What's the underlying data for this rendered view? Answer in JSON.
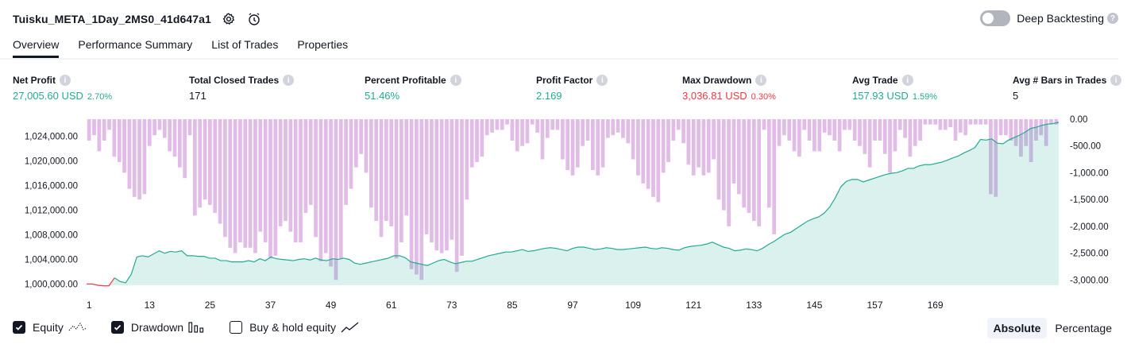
{
  "header": {
    "title": "Tuisku_META_1Day_2MS0_41d647a1",
    "deep_backtesting_label": "Deep Backtesting",
    "help_glyph": "?"
  },
  "tabs": [
    {
      "label": "Overview",
      "active": true
    },
    {
      "label": "Performance Summary",
      "active": false
    },
    {
      "label": "List of Trades",
      "active": false
    },
    {
      "label": "Properties",
      "active": false
    }
  ],
  "info_glyph": "i",
  "stats": [
    {
      "label": "Net Profit",
      "value": "27,005.60 USD",
      "pct": "2.70%",
      "color": "green"
    },
    {
      "label": "Total Closed Trades",
      "value": "171",
      "pct": "",
      "color": "dark"
    },
    {
      "label": "Percent Profitable",
      "value": "51.46%",
      "pct": "",
      "color": "green"
    },
    {
      "label": "Profit Factor",
      "value": "2.169",
      "pct": "",
      "color": "green"
    },
    {
      "label": "Max Drawdown",
      "value": "3,036.81 USD",
      "pct": "0.30%",
      "color": "red"
    },
    {
      "label": "Avg Trade",
      "value": "157.93 USD",
      "pct": "1.59%",
      "color": "green"
    },
    {
      "label": "Avg # Bars in Trades",
      "value": "5",
      "pct": "",
      "color": "dark"
    }
  ],
  "chart_data": {
    "type": "line",
    "equity_series_name": "Equity",
    "drawdown_series_name": "Drawdown",
    "x_ticks": [
      "1",
      "13",
      "25",
      "37",
      "49",
      "61",
      "73",
      "85",
      "97",
      "109",
      "121",
      "133",
      "145",
      "157",
      "169"
    ],
    "left_axis": {
      "labels": [
        "1,024,000.00",
        "1,020,000.00",
        "1,016,000.00",
        "1,012,000.00",
        "1,008,000.00",
        "1,004,000.00",
        "1,000,000.00"
      ],
      "range": [
        999800,
        1026800
      ]
    },
    "right_axis": {
      "labels": [
        "0.00",
        "-500.00",
        "-1,000.00",
        "-1,500.00",
        "-2,000.00",
        "-2,500.00",
        "-3,000.00"
      ],
      "range": [
        -3100,
        0
      ]
    },
    "equity": [
      1000000,
      1000000,
      999800,
      999700,
      999700,
      1001000,
      1000400,
      1000200,
      1001600,
      1004400,
      1004600,
      1004400,
      1004900,
      1005400,
      1005000,
      1005300,
      1005200,
      1005400,
      1004600,
      1004600,
      1004500,
      1004500,
      1004200,
      1004200,
      1003800,
      1003800,
      1003600,
      1003600,
      1003600,
      1003800,
      1003600,
      1004100,
      1003800,
      1004400,
      1004100,
      1004000,
      1003900,
      1003800,
      1004000,
      1004100,
      1003900,
      1004200,
      1003900,
      1003800,
      1004100,
      1004000,
      1004200,
      1004000,
      1003400,
      1003200,
      1003400,
      1003600,
      1003800,
      1004000,
      1004200,
      1004600,
      1004600,
      1004300,
      1003600,
      1003400,
      1003200,
      1003000,
      1003400,
      1003800,
      1004000,
      1003600,
      1003300,
      1003500,
      1003700,
      1003700,
      1004000,
      1004300,
      1004600,
      1004800,
      1005000,
      1005200,
      1005200,
      1005400,
      1005600,
      1005300,
      1005400,
      1005600,
      1005800,
      1005900,
      1005800,
      1005600,
      1005400,
      1005800,
      1006000,
      1006000,
      1005800,
      1005600,
      1005700,
      1005900,
      1005800,
      1005600,
      1005600,
      1005700,
      1005800,
      1005900,
      1006000,
      1005800,
      1005700,
      1005900,
      1005800,
      1005600,
      1005500,
      1005900,
      1006100,
      1006200,
      1006300,
      1006500,
      1006800,
      1006400,
      1006000,
      1005800,
      1005400,
      1005500,
      1005700,
      1005600,
      1005400,
      1005800,
      1006400,
      1006900,
      1007500,
      1008100,
      1008400,
      1009000,
      1009600,
      1010200,
      1010600,
      1010900,
      1011500,
      1012500,
      1014000,
      1015800,
      1016700,
      1017000,
      1017000,
      1016600,
      1016900,
      1017200,
      1017500,
      1017800,
      1018000,
      1018100,
      1018400,
      1018800,
      1018800,
      1019200,
      1019400,
      1019400,
      1019600,
      1019800,
      1020100,
      1020500,
      1020800,
      1021300,
      1021700,
      1022200,
      1023500,
      1023400,
      1023600,
      1022900,
      1022800,
      1023400,
      1023800,
      1024200,
      1024700,
      1025300,
      1025500,
      1025800,
      1026000,
      1026100,
      1026300
    ],
    "drawdown": [
      -400,
      -300,
      -600,
      -400,
      -200,
      -700,
      -800,
      -1000,
      -1300,
      -1450,
      -1500,
      -1400,
      -500,
      -300,
      -200,
      -350,
      -600,
      -700,
      -900,
      -1100,
      -300,
      -1800,
      -1650,
      -1500,
      -1600,
      -1750,
      -1950,
      -2200,
      -2400,
      -2500,
      -2300,
      -2400,
      -2400,
      -2500,
      -2100,
      -2300,
      -2600,
      -2550,
      -2000,
      -1900,
      -2100,
      -2300,
      -2300,
      -1750,
      -1600,
      -2200,
      -2650,
      -2500,
      -2750,
      -3000,
      -2600,
      -1600,
      -1300,
      -900,
      -650,
      -1000,
      -1650,
      -1900,
      -2200,
      -1900,
      -2000,
      -2600,
      -2300,
      -1800,
      -2800,
      -2900,
      -3000,
      -2150,
      -2300,
      -2450,
      -2500,
      -2450,
      -2250,
      -2850,
      -2550,
      -1500,
      -900,
      -800,
      -700,
      -300,
      -250,
      -200,
      -200,
      -100,
      -400,
      -600,
      -500,
      -450,
      -100,
      -250,
      -750,
      -350,
      -200,
      -200,
      -750,
      -950,
      -1050,
      -900,
      -500,
      -400,
      -950,
      -1050,
      -900,
      -350,
      -300,
      -250,
      -350,
      -450,
      -750,
      -1050,
      -1200,
      -1300,
      -1450,
      -1550,
      -1000,
      -800,
      -400,
      -200,
      -450,
      -850,
      -1050,
      -900,
      -1050,
      -1000,
      -750,
      -1500,
      -1700,
      -2000,
      -1200,
      -1400,
      -1650,
      -1750,
      -1900,
      -2000,
      -200,
      -1650,
      -2150,
      -500,
      -300,
      -400,
      -600,
      -700,
      -200,
      -400,
      -600,
      -600,
      -250,
      -300,
      -400,
      -600,
      -200,
      -200,
      -400,
      -500,
      -650,
      -900,
      -400,
      -400,
      -650,
      -1000,
      -600,
      -200,
      -350,
      -700,
      -500,
      -400,
      -100,
      -100,
      -100,
      -200,
      -200,
      -150,
      -400,
      -250,
      -300,
      -100,
      -100,
      -100,
      -100,
      -1400,
      -1450,
      -300,
      -300,
      -400,
      -500,
      -700,
      -500,
      -800,
      -400,
      -300,
      -500,
      -100,
      -100
    ],
    "buy_hold_series_name": "Buy & hold equity",
    "equity_color": "#22ab94",
    "equity_negative_color": "#f23645",
    "drawdown_color": "#ce93d8"
  },
  "legend": [
    {
      "label": "Equity",
      "checked": true
    },
    {
      "label": "Drawdown",
      "checked": true
    },
    {
      "label": "Buy & hold equity",
      "checked": false
    }
  ],
  "modes": [
    {
      "label": "Absolute",
      "active": true
    },
    {
      "label": "Percentage",
      "active": false
    }
  ]
}
